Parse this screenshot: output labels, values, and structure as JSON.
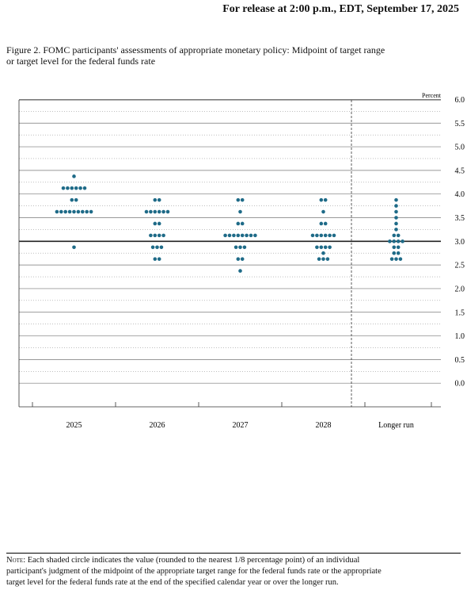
{
  "header": "For release at 2:00 p.m., EDT, September 17, 2025",
  "figure_title": [
    "Figure 2. FOMC participants' assessments of appropriate monetary policy: Midpoint of target range",
    "or target level for the federal funds rate"
  ],
  "note_label": "Note:",
  "note": [
    "Each shaded circle indicates the value (rounded to the nearest 1/8 percentage point) of an individual",
    "participant's judgment of the midpoint of the appropriate target range for the federal funds rate or the appropriate",
    "target level for the federal funds rate at the end of the specified calendar year or over the longer run."
  ],
  "chart_data": {
    "type": "dot",
    "y_axis_label": "Percent",
    "color": "#1f6b88",
    "categories": [
      "2025",
      "2026",
      "2027",
      "2028",
      "Longer run"
    ],
    "groups": [
      [
        {
          "rate": 4.375,
          "count": 1
        },
        {
          "rate": 4.125,
          "count": 6
        },
        {
          "rate": 3.875,
          "count": 2
        },
        {
          "rate": 3.625,
          "count": 9
        },
        {
          "rate": 2.875,
          "count": 1
        }
      ],
      [
        {
          "rate": 3.875,
          "count": 2
        },
        {
          "rate": 3.625,
          "count": 6
        },
        {
          "rate": 3.375,
          "count": 2
        },
        {
          "rate": 3.125,
          "count": 4
        },
        {
          "rate": 2.875,
          "count": 3
        },
        {
          "rate": 2.625,
          "count": 2
        }
      ],
      [
        {
          "rate": 3.875,
          "count": 2
        },
        {
          "rate": 3.625,
          "count": 1
        },
        {
          "rate": 3.375,
          "count": 2
        },
        {
          "rate": 3.125,
          "count": 8
        },
        {
          "rate": 2.875,
          "count": 3
        },
        {
          "rate": 2.625,
          "count": 2
        },
        {
          "rate": 2.375,
          "count": 1
        }
      ],
      [
        {
          "rate": 3.875,
          "count": 2
        },
        {
          "rate": 3.625,
          "count": 1
        },
        {
          "rate": 3.375,
          "count": 2
        },
        {
          "rate": 3.125,
          "count": 6
        },
        {
          "rate": 2.875,
          "count": 4
        },
        {
          "rate": 2.75,
          "count": 1
        },
        {
          "rate": 2.625,
          "count": 3
        }
      ],
      [
        {
          "rate": 3.875,
          "count": 1
        },
        {
          "rate": 3.75,
          "count": 1
        },
        {
          "rate": 3.625,
          "count": 1
        },
        {
          "rate": 3.5,
          "count": 1
        },
        {
          "rate": 3.375,
          "count": 1
        },
        {
          "rate": 3.25,
          "count": 1
        },
        {
          "rate": 3.125,
          "count": 2
        },
        {
          "rate": 3.0,
          "count": 4
        },
        {
          "rate": 2.875,
          "count": 2
        },
        {
          "rate": 2.75,
          "count": 2
        },
        {
          "rate": 2.625,
          "count": 3
        }
      ]
    ],
    "ylim": [
      -0.5,
      6.125
    ],
    "yticks": [
      {
        "value": 6,
        "label": "6.0"
      },
      5.5,
      {
        "value": 5,
        "label": "5.0"
      },
      4.5,
      {
        "value": 4,
        "label": "4.0"
      },
      3.5,
      {
        "value": 3,
        "label": "3.0"
      },
      2.5,
      {
        "value": 2,
        "label": "2.0"
      },
      1.5,
      {
        "value": 1,
        "label": "1.0"
      },
      0.5,
      {
        "value": 0,
        "label": "0.0"
      }
    ],
    "minor_yticks": [
      5.75,
      5.25,
      4.75,
      4.25,
      3.75,
      3.25,
      2.75,
      2.25,
      1.75,
      1.25,
      0.75,
      0.25
    ],
    "reference_line": 3,
    "grid": true
  }
}
